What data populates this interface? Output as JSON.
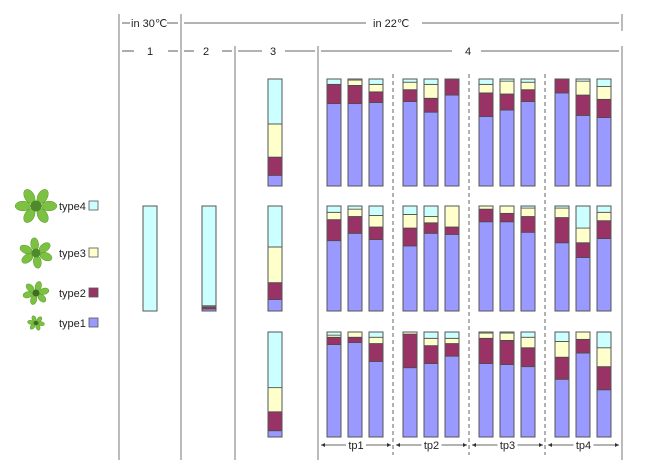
{
  "chart_data": {
    "type": "bar",
    "subtype": "stacked-proportion",
    "header": {
      "temp_30": "in 30℃",
      "temp_22": "in 22℃",
      "sections": [
        "1",
        "2",
        "3",
        "4"
      ]
    },
    "timepoints": [
      "tp1",
      "tp2",
      "tp3",
      "tp4"
    ],
    "legend": [
      {
        "key": "type4",
        "label": "type4",
        "color": "#ccffff"
      },
      {
        "key": "type3",
        "label": "type3",
        "color": "#ffffcc"
      },
      {
        "key": "type2",
        "label": "type2",
        "color": "#993366"
      },
      {
        "key": "type1",
        "label": "type1",
        "color": "#9999ff"
      }
    ],
    "stack_order_bottom_to_top": [
      "type1",
      "type2",
      "type3",
      "type4"
    ],
    "ylim": [
      0,
      100
    ],
    "section1": {
      "rows": [
        null,
        [
          {
            "type1": 0,
            "type2": 0,
            "type3": 0,
            "type4": 100
          }
        ],
        null
      ]
    },
    "section2": {
      "rows": [
        null,
        [
          {
            "type1": 2,
            "type2": 2,
            "type3": 1,
            "type4": 95
          }
        ],
        null
      ]
    },
    "section3": {
      "rows": [
        [
          {
            "type1": 10,
            "type2": 17,
            "type3": 31,
            "type4": 42
          }
        ],
        [
          {
            "type1": 11,
            "type2": 16,
            "type3": 34,
            "type4": 39
          }
        ],
        [
          {
            "type1": 6,
            "type2": 18,
            "type3": 23,
            "type4": 53
          }
        ]
      ]
    },
    "section4": {
      "rows": [
        [
          [
            {
              "type1": 77,
              "type2": 18,
              "type3": 0,
              "type4": 5
            },
            {
              "type1": 77,
              "type2": 17,
              "type3": 5,
              "type4": 1
            },
            {
              "type1": 78,
              "type2": 10,
              "type3": 7,
              "type4": 5
            }
          ],
          [
            {
              "type1": 79,
              "type2": 11,
              "type3": 7,
              "type4": 3
            },
            {
              "type1": 69,
              "type2": 13,
              "type3": 13,
              "type4": 5
            },
            {
              "type1": 85,
              "type2": 15,
              "type3": 0,
              "type4": 0
            }
          ],
          [
            {
              "type1": 65,
              "type2": 22,
              "type3": 8,
              "type4": 5
            },
            {
              "type1": 71,
              "type2": 15,
              "type3": 12,
              "type4": 2
            },
            {
              "type1": 79,
              "type2": 11,
              "type3": 7,
              "type4": 3
            }
          ],
          [
            {
              "type1": 87,
              "type2": 13,
              "type3": 0,
              "type4": 0
            },
            {
              "type1": 66,
              "type2": 19,
              "type3": 13,
              "type4": 2
            },
            {
              "type1": 64,
              "type2": 17,
              "type3": 12,
              "type4": 7
            }
          ]
        ],
        [
          [
            {
              "type1": 67,
              "type2": 20,
              "type3": 7,
              "type4": 6
            },
            {
              "type1": 74,
              "type2": 16,
              "type3": 7,
              "type4": 3
            },
            {
              "type1": 68,
              "type2": 12,
              "type3": 11,
              "type4": 9
            }
          ],
          [
            {
              "type1": 62,
              "type2": 17,
              "type3": 13,
              "type4": 8
            },
            {
              "type1": 74,
              "type2": 10,
              "type3": 6,
              "type4": 10
            },
            {
              "type1": 73,
              "type2": 7,
              "type3": 20,
              "type4": 0
            }
          ],
          [
            {
              "type1": 85,
              "type2": 12,
              "type3": 3,
              "type4": 0
            },
            {
              "type1": 85,
              "type2": 8,
              "type3": 7,
              "type4": 0
            },
            {
              "type1": 75,
              "type2": 15,
              "type3": 8,
              "type4": 2
            }
          ],
          [
            {
              "type1": 65,
              "type2": 24,
              "type3": 9,
              "type4": 2
            },
            {
              "type1": 51,
              "type2": 14,
              "type3": 14,
              "type4": 21
            },
            {
              "type1": 69,
              "type2": 17,
              "type3": 8,
              "type4": 6
            }
          ]
        ],
        [
          [
            {
              "type1": 88,
              "type2": 7,
              "type3": 2,
              "type4": 3
            },
            {
              "type1": 90,
              "type2": 5,
              "type3": 5,
              "type4": 0
            },
            {
              "type1": 72,
              "type2": 17,
              "type3": 6,
              "type4": 5
            }
          ],
          [
            {
              "type1": 66,
              "type2": 32,
              "type3": 2,
              "type4": 0
            },
            {
              "type1": 70,
              "type2": 17,
              "type3": 7,
              "type4": 6
            },
            {
              "type1": 77,
              "type2": 12,
              "type3": 5,
              "type4": 6
            }
          ],
          [
            {
              "type1": 70,
              "type2": 24,
              "type3": 5,
              "type4": 1
            },
            {
              "type1": 69,
              "type2": 23,
              "type3": 7,
              "type4": 1
            },
            {
              "type1": 67,
              "type2": 18,
              "type3": 10,
              "type4": 5
            }
          ],
          [
            {
              "type1": 55,
              "type2": 21,
              "type3": 15,
              "type4": 9
            },
            {
              "type1": 80,
              "type2": 13,
              "type3": 7,
              "type4": 0
            },
            {
              "type1": 45,
              "type2": 22,
              "type3": 18,
              "type4": 15
            }
          ]
        ]
      ]
    }
  }
}
